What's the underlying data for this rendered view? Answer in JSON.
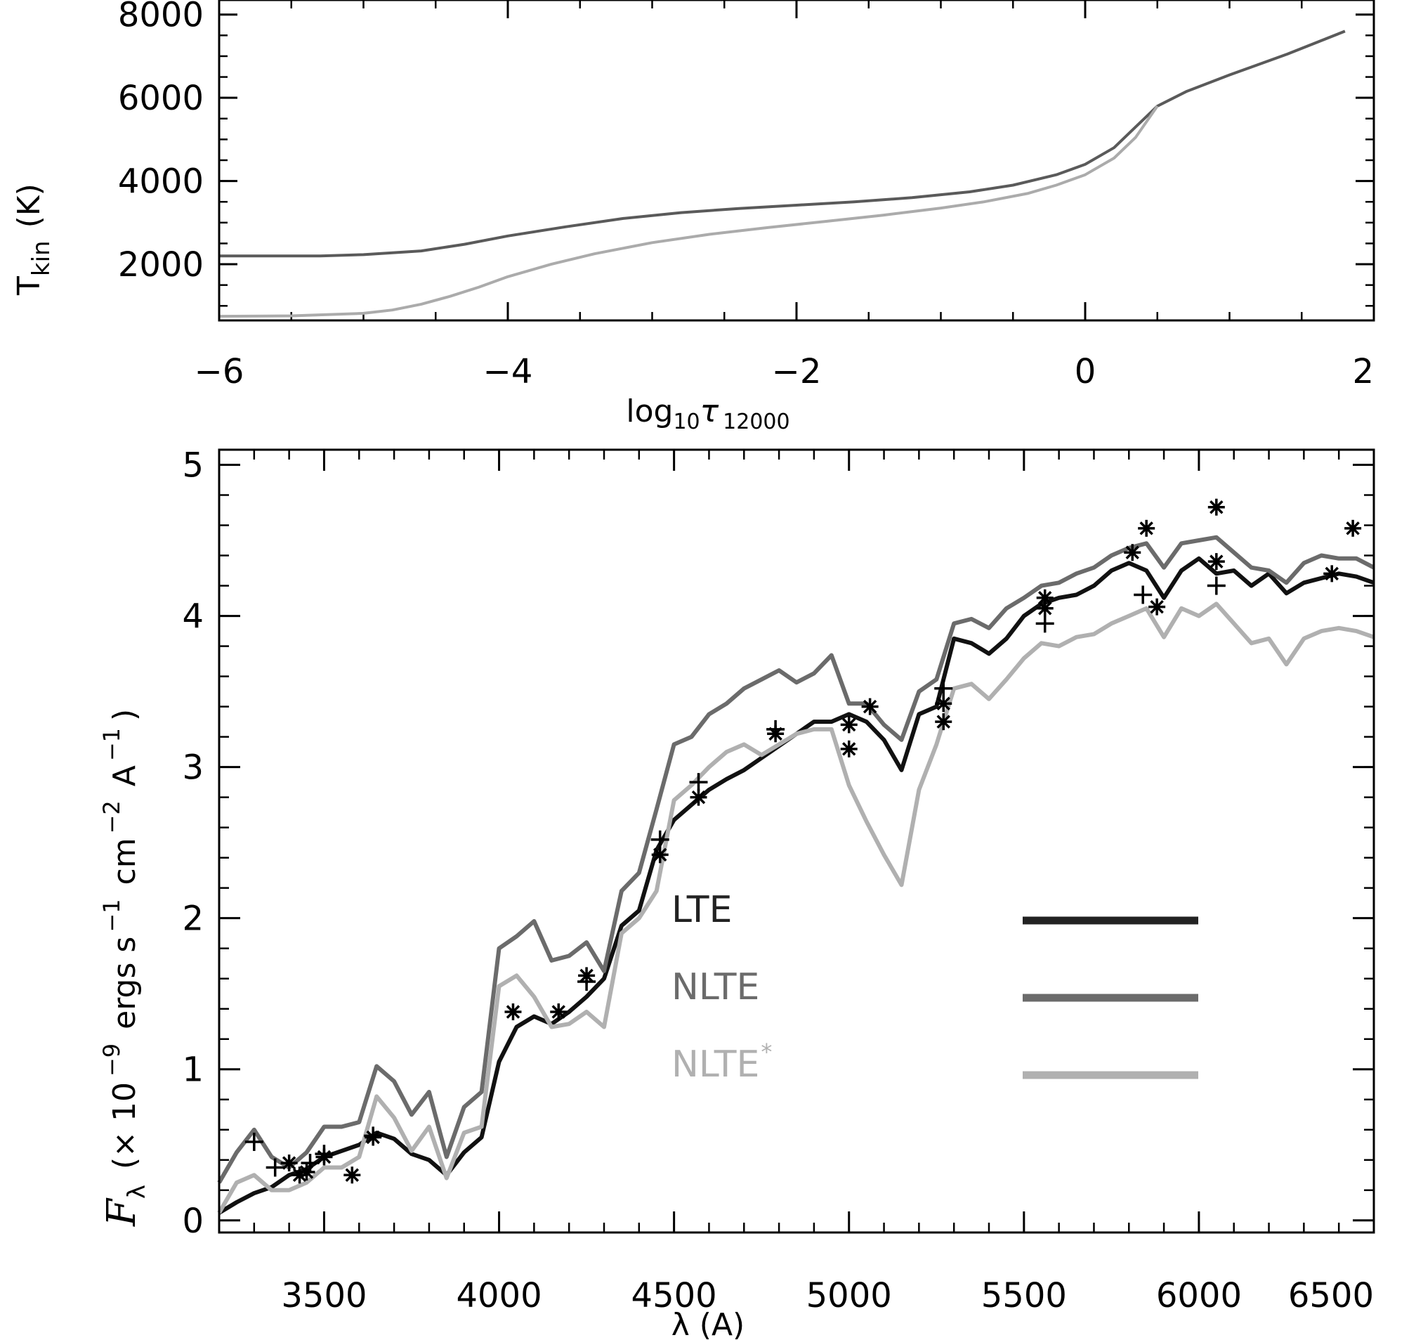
{
  "chart_data": [
    {
      "type": "line",
      "panel": "top",
      "xlabel": "log₁₀τ₁₂₀₀₀",
      "ylabel": "T_kin (K)",
      "ylabel_main": "T",
      "ylabel_sub": "kin",
      "ylabel_unit": "(K)",
      "xlabel_main": "log",
      "xlabel_sub1": "10",
      "xlabel_tau": "τ",
      "xlabel_sub2": "12000",
      "xlim": [
        -6,
        2
      ],
      "ylim": [
        650,
        8350
      ],
      "xticks": [
        -6,
        -4,
        -2,
        0,
        2
      ],
      "xtick_labels": [
        "−6",
        "−4",
        "−2",
        "0",
        "2"
      ],
      "yticks": [
        2000,
        4000,
        6000,
        8000
      ],
      "ytick_labels": [
        "2000",
        "4000",
        "6000",
        "8000"
      ],
      "series": [
        {
          "color": "#5a5a5a",
          "x": [
            -6.0,
            -5.3,
            -5.0,
            -4.6,
            -4.3,
            -4.0,
            -3.6,
            -3.2,
            -2.8,
            -2.4,
            -2.0,
            -1.6,
            -1.2,
            -0.8,
            -0.5,
            -0.2,
            0.0,
            0.2,
            0.35,
            0.5,
            0.7,
            1.0,
            1.4,
            1.8
          ],
          "y": [
            2200,
            2200,
            2230,
            2320,
            2480,
            2680,
            2900,
            3100,
            3240,
            3340,
            3420,
            3500,
            3600,
            3740,
            3900,
            4150,
            4400,
            4800,
            5300,
            5800,
            6150,
            6550,
            7050,
            7600
          ]
        },
        {
          "color": "#ababab",
          "x": [
            -6.0,
            -5.5,
            -5.0,
            -4.8,
            -4.6,
            -4.4,
            -4.2,
            -4.0,
            -3.7,
            -3.4,
            -3.0,
            -2.6,
            -2.2,
            -1.8,
            -1.4,
            -1.0,
            -0.7,
            -0.4,
            -0.2,
            0.0,
            0.2,
            0.35,
            0.5
          ],
          "y": [
            750,
            760,
            820,
            900,
            1040,
            1230,
            1450,
            1700,
            2000,
            2250,
            2520,
            2720,
            2880,
            3030,
            3180,
            3350,
            3500,
            3700,
            3900,
            4150,
            4550,
            5050,
            5800
          ]
        }
      ]
    },
    {
      "type": "line",
      "panel": "bottom",
      "xlabel": "λ (A)",
      "ylabel": "Fλ (× 10⁻⁹ ergs s⁻¹ cm⁻² A⁻¹)",
      "ylabel_F": "F",
      "ylabel_lambda": "λ",
      "ylabel_rest": "(× 10",
      "ylabel_exp1": "−9",
      "ylabel_ergs": "ergs s",
      "ylabel_exp2": "−1",
      "ylabel_cm": "cm",
      "ylabel_exp3": "−2",
      "ylabel_A": "A",
      "ylabel_exp4": "−1",
      "ylabel_close": ")",
      "xlim": [
        3200,
        6500
      ],
      "ylim": [
        -0.08,
        5.1
      ],
      "xticks": [
        3500,
        4000,
        4500,
        5000,
        5500,
        6000,
        6500
      ],
      "xtick_labels": [
        "3500",
        "4000",
        "4500",
        "5000",
        "5500",
        "6000",
        "6500"
      ],
      "yticks": [
        0,
        1,
        2,
        3,
        4,
        5
      ],
      "ytick_labels": [
        "0",
        "1",
        "2",
        "3",
        "4",
        "5"
      ],
      "legend": [
        {
          "label": "LTE",
          "color": "#222222"
        },
        {
          "label": "NLTE",
          "color": "#6b6b6b"
        },
        {
          "label": "NLTE",
          "sup": "*",
          "color": "#b0b0b0"
        }
      ],
      "series": [
        {
          "color": "#111111",
          "x": [
            3200,
            3250,
            3300,
            3350,
            3400,
            3450,
            3500,
            3550,
            3600,
            3650,
            3700,
            3750,
            3800,
            3850,
            3900,
            3950,
            4000,
            4050,
            4100,
            4150,
            4200,
            4250,
            4300,
            4350,
            4400,
            4450,
            4500,
            4550,
            4600,
            4650,
            4700,
            4750,
            4800,
            4850,
            4900,
            4950,
            5000,
            5050,
            5100,
            5150,
            5200,
            5250,
            5300,
            5350,
            5400,
            5450,
            5500,
            5550,
            5600,
            5650,
            5700,
            5750,
            5800,
            5850,
            5900,
            5950,
            6000,
            6050,
            6100,
            6150,
            6200,
            6250,
            6300,
            6350,
            6400,
            6450,
            6500
          ],
          "y": [
            0.05,
            0.12,
            0.18,
            0.22,
            0.3,
            0.34,
            0.42,
            0.46,
            0.5,
            0.58,
            0.54,
            0.44,
            0.4,
            0.3,
            0.45,
            0.55,
            1.05,
            1.28,
            1.35,
            1.3,
            1.38,
            1.48,
            1.6,
            1.95,
            2.05,
            2.45,
            2.65,
            2.75,
            2.85,
            2.92,
            2.98,
            3.06,
            3.14,
            3.22,
            3.3,
            3.3,
            3.35,
            3.3,
            3.18,
            2.98,
            3.35,
            3.4,
            3.85,
            3.82,
            3.75,
            3.85,
            4.0,
            4.08,
            4.12,
            4.14,
            4.2,
            4.3,
            4.35,
            4.3,
            4.12,
            4.3,
            4.38,
            4.28,
            4.3,
            4.2,
            4.28,
            4.15,
            4.22,
            4.25,
            4.28,
            4.26,
            4.22
          ]
        },
        {
          "color": "#6b6b6b",
          "x": [
            3200,
            3250,
            3300,
            3350,
            3400,
            3450,
            3500,
            3550,
            3600,
            3650,
            3700,
            3750,
            3800,
            3850,
            3900,
            3950,
            4000,
            4050,
            4100,
            4150,
            4200,
            4250,
            4300,
            4350,
            4400,
            4450,
            4500,
            4550,
            4600,
            4650,
            4700,
            4750,
            4800,
            4850,
            4900,
            4950,
            5000,
            5050,
            5100,
            5150,
            5200,
            5250,
            5300,
            5350,
            5400,
            5450,
            5500,
            5550,
            5600,
            5650,
            5700,
            5750,
            5800,
            5850,
            5900,
            5950,
            6000,
            6050,
            6100,
            6150,
            6200,
            6250,
            6300,
            6350,
            6400,
            6450,
            6500
          ],
          "y": [
            0.25,
            0.45,
            0.6,
            0.42,
            0.35,
            0.45,
            0.62,
            0.62,
            0.65,
            1.02,
            0.92,
            0.7,
            0.85,
            0.42,
            0.75,
            0.85,
            1.8,
            1.88,
            1.98,
            1.72,
            1.75,
            1.84,
            1.65,
            2.18,
            2.3,
            2.72,
            3.15,
            3.2,
            3.35,
            3.42,
            3.52,
            3.58,
            3.64,
            3.56,
            3.62,
            3.74,
            3.42,
            3.42,
            3.28,
            3.18,
            3.5,
            3.58,
            3.95,
            3.98,
            3.92,
            4.05,
            4.12,
            4.2,
            4.22,
            4.28,
            4.32,
            4.4,
            4.45,
            4.48,
            4.32,
            4.48,
            4.5,
            4.52,
            4.42,
            4.32,
            4.3,
            4.22,
            4.35,
            4.4,
            4.38,
            4.38,
            4.32
          ]
        },
        {
          "color": "#b0b0b0",
          "x": [
            3200,
            3250,
            3300,
            3350,
            3400,
            3450,
            3500,
            3550,
            3600,
            3650,
            3700,
            3750,
            3800,
            3850,
            3900,
            3950,
            4000,
            4050,
            4100,
            4150,
            4200,
            4250,
            4300,
            4350,
            4400,
            4450,
            4500,
            4550,
            4600,
            4650,
            4700,
            4750,
            4800,
            4850,
            4900,
            4950,
            5000,
            5050,
            5100,
            5150,
            5200,
            5250,
            5300,
            5350,
            5400,
            5450,
            5500,
            5550,
            5600,
            5650,
            5700,
            5750,
            5800,
            5850,
            5900,
            5950,
            6000,
            6050,
            6100,
            6150,
            6200,
            6250,
            6300,
            6350,
            6400,
            6450,
            6500
          ],
          "y": [
            0.05,
            0.25,
            0.3,
            0.2,
            0.2,
            0.25,
            0.35,
            0.35,
            0.42,
            0.82,
            0.68,
            0.46,
            0.62,
            0.28,
            0.58,
            0.62,
            1.55,
            1.62,
            1.48,
            1.28,
            1.3,
            1.38,
            1.28,
            1.9,
            2.0,
            2.18,
            2.78,
            2.88,
            3.0,
            3.1,
            3.15,
            3.08,
            3.15,
            3.22,
            3.25,
            3.25,
            2.88,
            2.64,
            2.42,
            2.22,
            2.85,
            3.15,
            3.52,
            3.55,
            3.45,
            3.58,
            3.72,
            3.82,
            3.8,
            3.86,
            3.88,
            3.95,
            4.0,
            4.05,
            3.86,
            4.05,
            4.0,
            4.08,
            3.95,
            3.82,
            3.85,
            3.68,
            3.85,
            3.9,
            3.92,
            3.9,
            3.86
          ]
        }
      ],
      "observed_asterisk": {
        "x": [
          3400,
          3430,
          3450,
          3500,
          3580,
          3640,
          4040,
          4170,
          4250,
          4460,
          4570,
          4790,
          5000,
          5000,
          5060,
          5270,
          5270,
          5560,
          5560,
          5810,
          5850,
          5880,
          6050,
          6050,
          6380,
          6440
        ],
        "y": [
          0.38,
          0.3,
          0.32,
          0.42,
          0.3,
          0.55,
          1.38,
          1.38,
          1.62,
          2.42,
          2.8,
          3.22,
          3.28,
          3.12,
          3.4,
          3.42,
          3.3,
          4.05,
          4.12,
          4.42,
          4.58,
          4.06,
          4.72,
          4.36,
          4.28,
          4.58
        ]
      },
      "observed_plus": {
        "x": [
          3300,
          3360,
          3460,
          3500,
          3640,
          4250,
          4460,
          4570,
          4790,
          5270,
          5560,
          5840,
          6050
        ],
        "y": [
          0.52,
          0.35,
          0.38,
          0.44,
          0.56,
          1.58,
          2.52,
          2.9,
          3.25,
          3.52,
          3.95,
          4.14,
          4.2
        ]
      }
    }
  ]
}
